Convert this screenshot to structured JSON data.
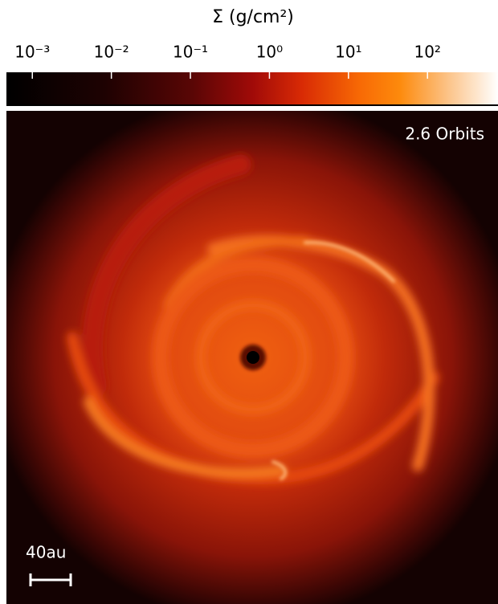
{
  "chart_data": {
    "type": "image",
    "title": "Σ (g/cm²)",
    "colorbar_scale": "log",
    "clim": [
      0.00047,
      780
    ],
    "cticks": [
      {
        "value": 0.001,
        "label": "10⁻³"
      },
      {
        "value": 0.01,
        "label": "10⁻²"
      },
      {
        "value": 0.1,
        "label": "10⁻¹"
      },
      {
        "value": 1,
        "label": "10⁰"
      },
      {
        "value": 10,
        "label": "10¹"
      },
      {
        "value": 100,
        "label": "10²"
      }
    ],
    "annotations": [
      "2.6 Orbits",
      "40au"
    ]
  }
}
